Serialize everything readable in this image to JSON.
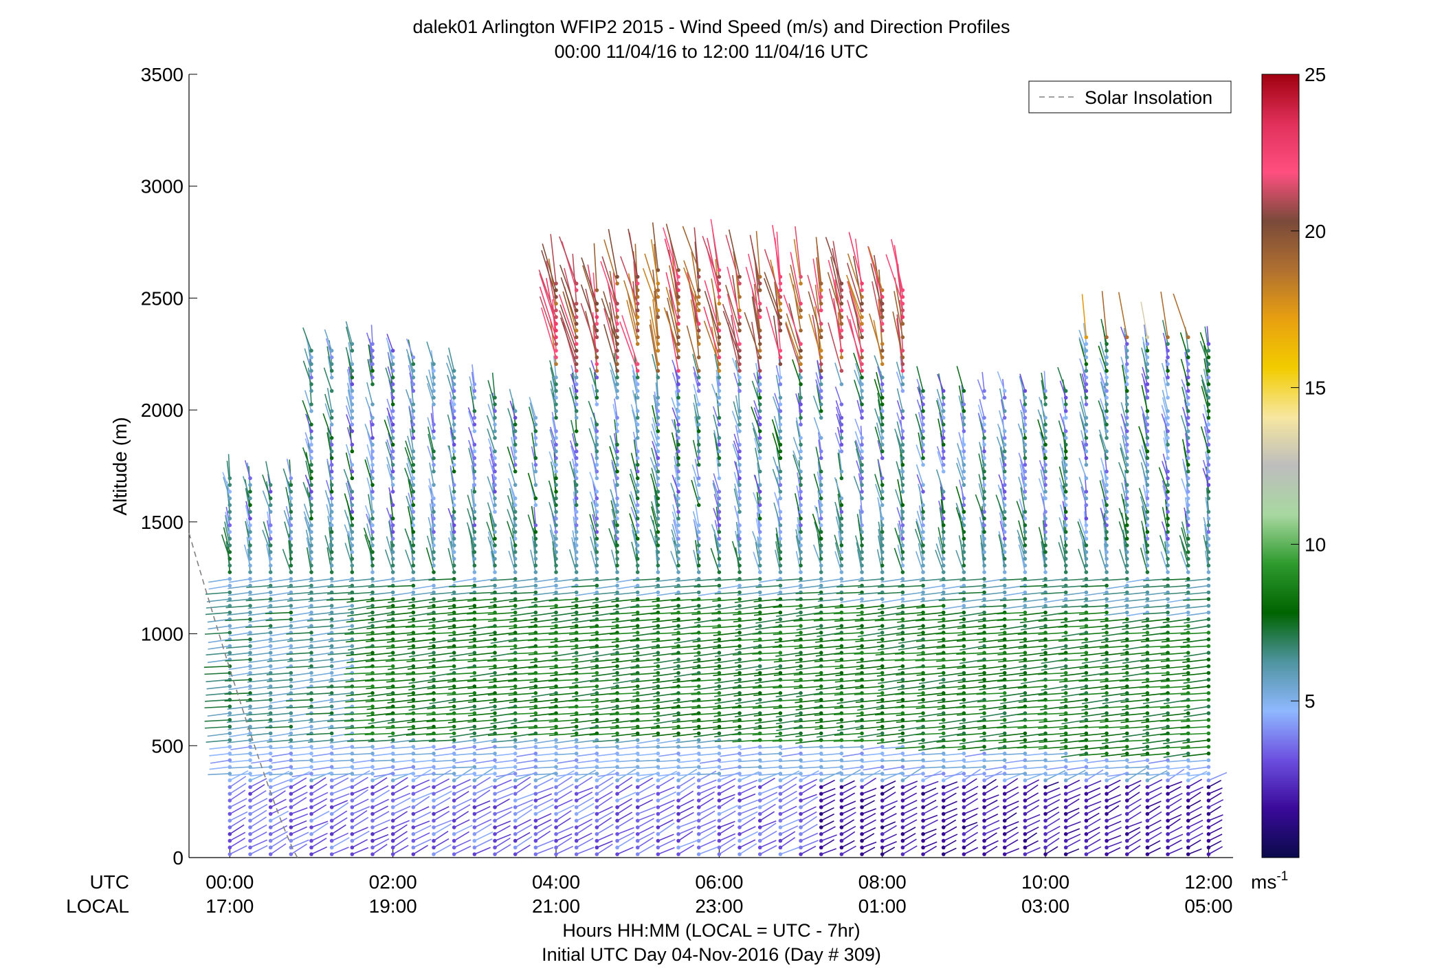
{
  "chart_data": {
    "type": "wind-barb-profile",
    "title": "dalek01 Arlington WFIP2 2015 - Wind Speed (m/s) and Direction Profiles",
    "subtitle": "00:00 11/04/16 to 12:00 11/04/16  UTC",
    "ylabel": "Altitude (m)",
    "ylim": [
      0,
      3500
    ],
    "yticks": [
      "0",
      "500",
      "1000",
      "1500",
      "2000",
      "2500",
      "3000",
      "3500"
    ],
    "xlim_hours_utc": [
      -0.5,
      12.3
    ],
    "x_row_labels": {
      "utc": "UTC",
      "local": "LOCAL"
    },
    "xticks_utc": [
      "00:00",
      "02:00",
      "04:00",
      "06:00",
      "08:00",
      "10:00",
      "12:00"
    ],
    "xticks_local": [
      "17:00",
      "19:00",
      "21:00",
      "23:00",
      "01:00",
      "03:00",
      "05:00"
    ],
    "xlabel": "Hours HH:MM  (LOCAL = UTC - 7hr)",
    "footer": "Initial UTC Day 04-Nov-2016 (Day # 309)",
    "legend": {
      "label": "Solar Insolation",
      "placement": "top-right",
      "line_style": "dashed",
      "color": "#808080"
    },
    "colorbar": {
      "range": [
        0,
        25
      ],
      "ticks": [
        "5",
        "10",
        "15",
        "20",
        "25"
      ],
      "unit_base": "ms",
      "unit_exp": "-1",
      "colormap": [
        "#0a0a4a",
        "#3a0a9a",
        "#6c4fe0",
        "#8fb8ff",
        "#4f94a0",
        "#006400",
        "#2e9a2e",
        "#a8d8a0",
        "#bdbdbd",
        "#f7e7a0",
        "#f2cc00",
        "#e8a010",
        "#b07030",
        "#7a4a3a",
        "#ff4f80",
        "#e0305a",
        "#a00010"
      ]
    },
    "time_step_hours": 0.25,
    "altitude_step_m": 30,
    "data_summary": "Wind barbs every 15 min from 00:00 to 12:00 UTC; low-level jet of 8-10 m/s near 600-900 m after 02:00, weak winds (<3 m/s) below 300 m after 08:00, 20-25 m/s winds aloft near 2200-2600 m between 04:00 and 08:00.",
    "solar_insolation": {
      "note": "Dashed gray curve decreasing from about 1450 m at 23:30 UTC to 0 near 00:50 UTC (evening sunset)"
    }
  }
}
